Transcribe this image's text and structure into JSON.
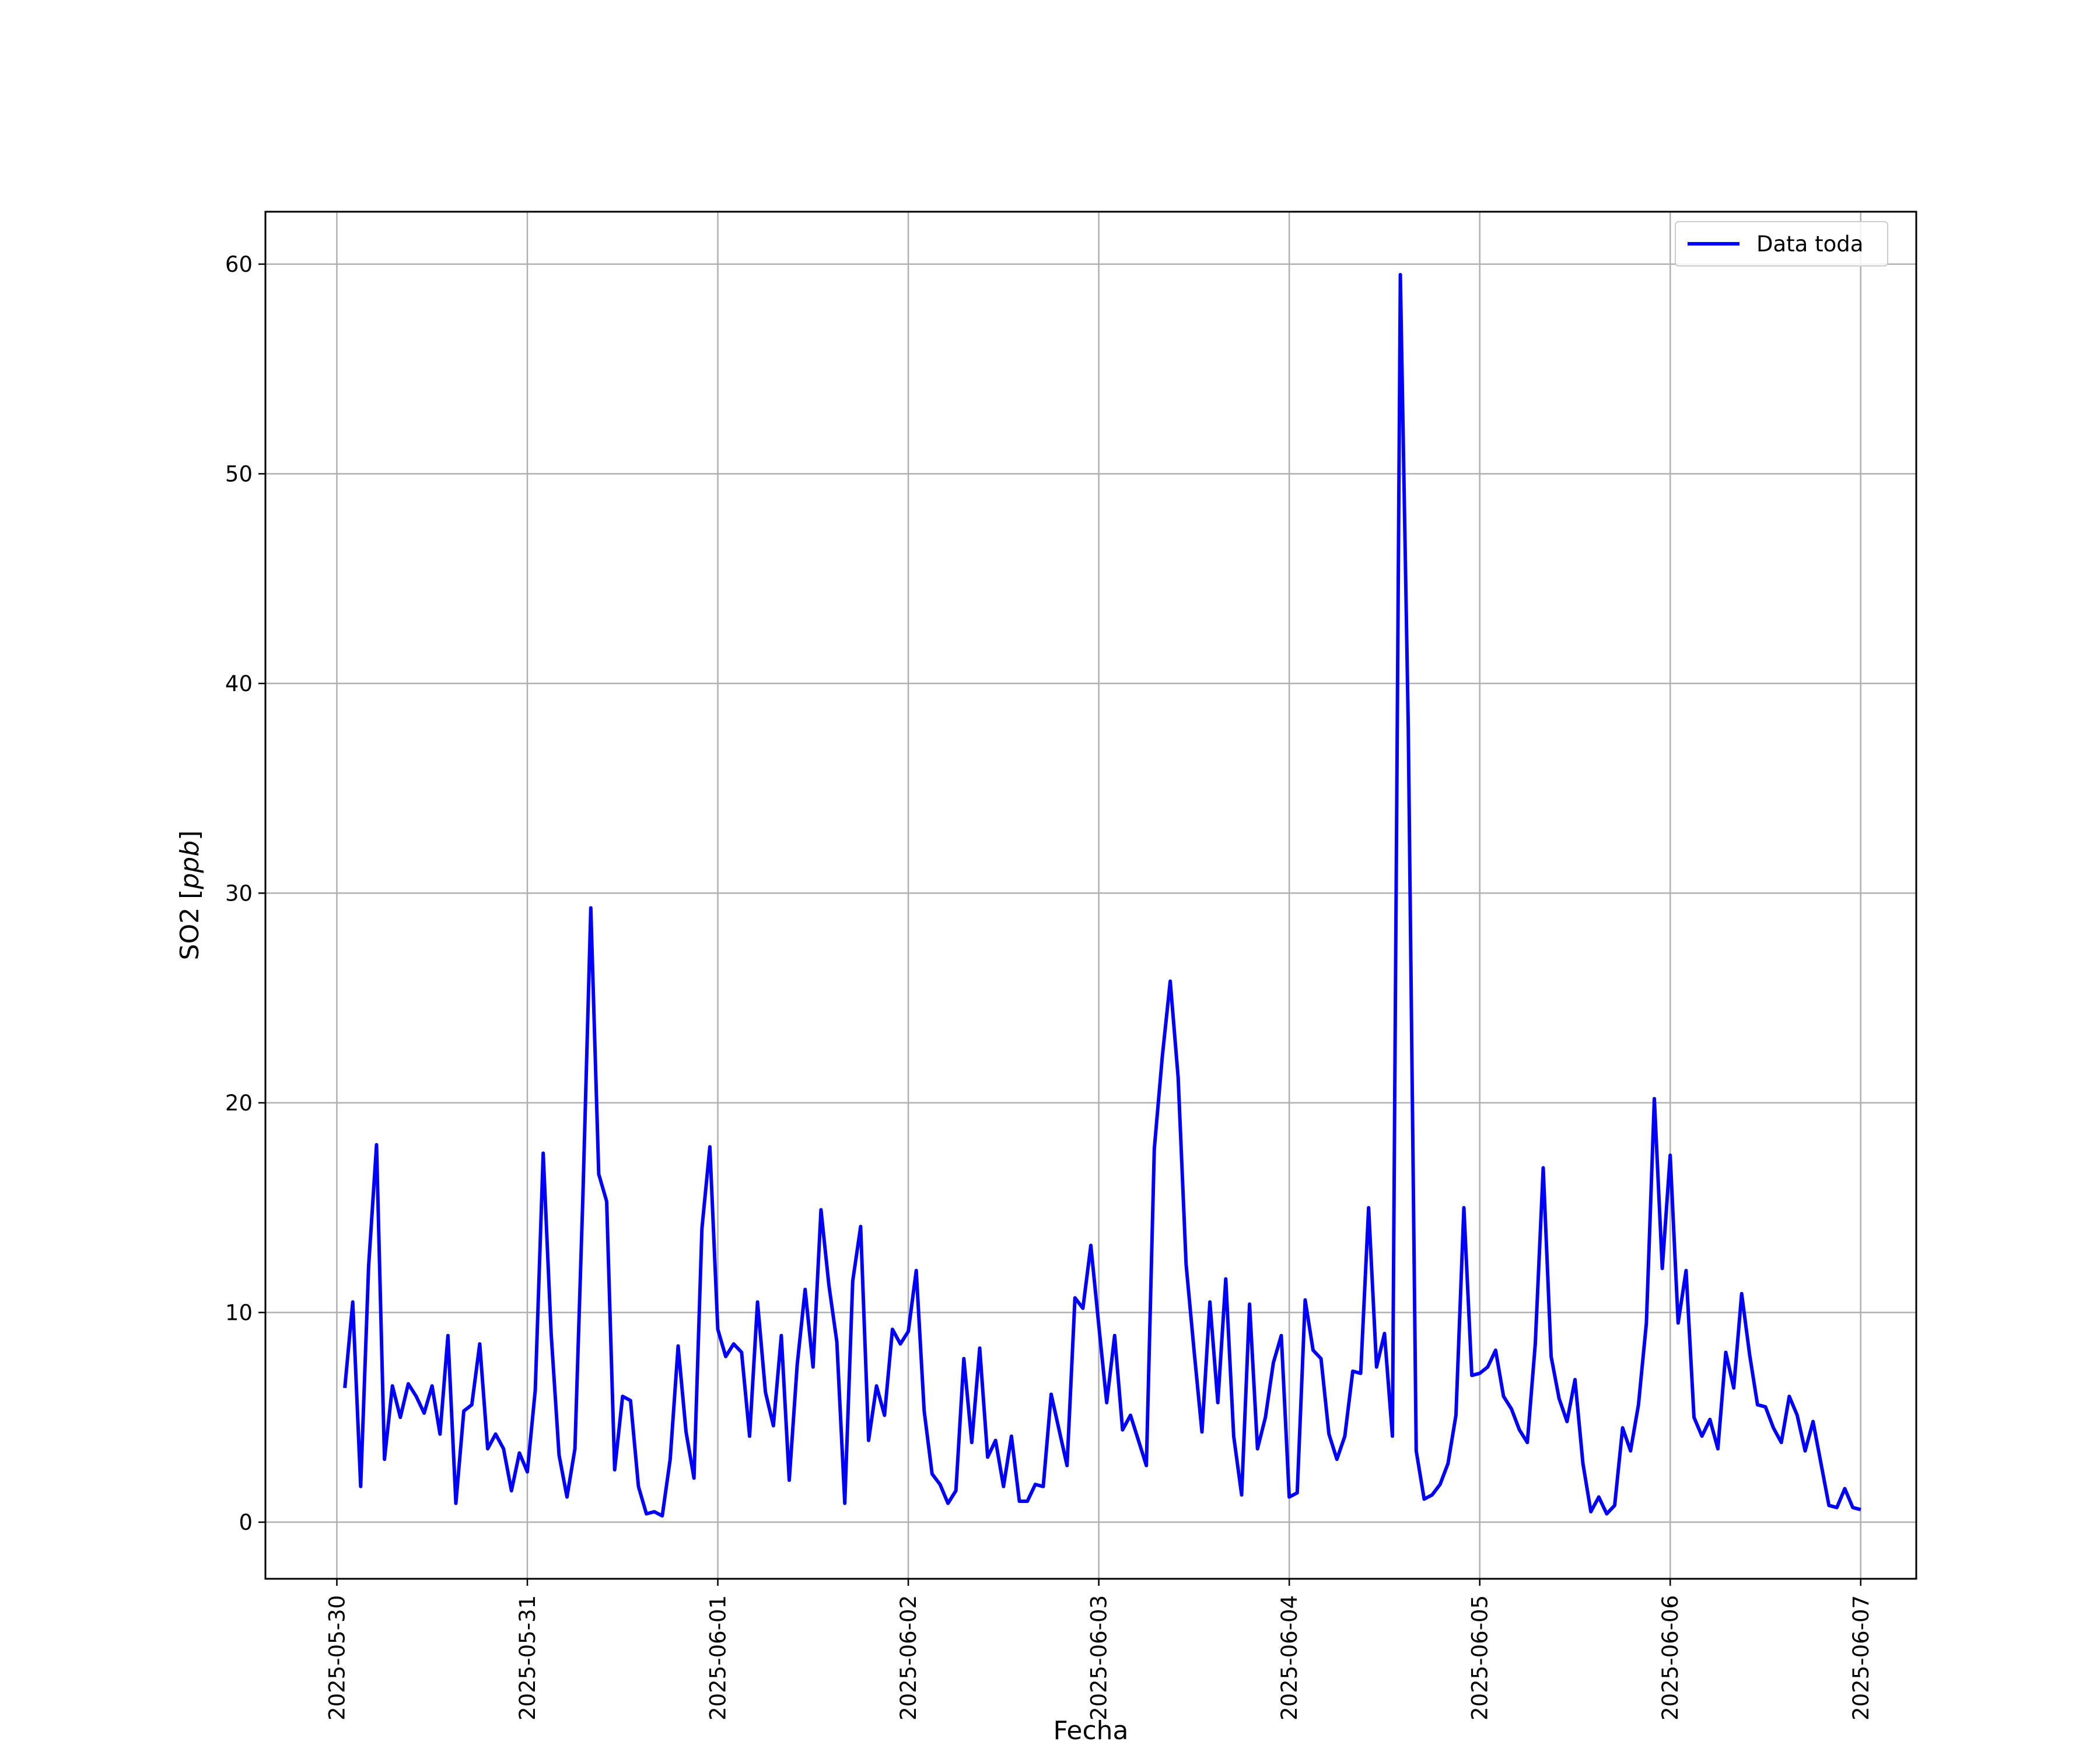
{
  "chart_data": {
    "type": "line",
    "title": "",
    "xlabel": "Fecha",
    "ylabel_text": "SO2 [",
    "ylabel_unit": "ppb",
    "ylabel_close": "]",
    "ylabel": "SO2 [ppb]",
    "x_axis_type": "time",
    "xlim": [
      "2025-05-29T15:00",
      "2025-06-07T07:00"
    ],
    "ylim": [
      -2.7,
      62.5
    ],
    "grid": true,
    "legend_position": "top-right",
    "xticks": [
      "2025-05-30",
      "2025-05-31",
      "2025-06-01",
      "2025-06-02",
      "2025-06-03",
      "2025-06-04",
      "2025-06-05",
      "2025-06-06",
      "2025-06-07"
    ],
    "yticks": [
      0,
      10,
      20,
      30,
      40,
      50,
      60
    ],
    "series": [
      {
        "name": "Data toda",
        "color": "#0000ff",
        "x": [
          "2025-05-30T01:00",
          "2025-05-30T02:00",
          "2025-05-30T03:00",
          "2025-05-30T04:00",
          "2025-05-30T05:00",
          "2025-05-30T06:00",
          "2025-05-30T07:00",
          "2025-05-30T08:00",
          "2025-05-30T09:00",
          "2025-05-30T10:00",
          "2025-05-30T11:00",
          "2025-05-30T12:00",
          "2025-05-30T13:00",
          "2025-05-30T14:00",
          "2025-05-30T15:00",
          "2025-05-30T16:00",
          "2025-05-30T17:00",
          "2025-05-30T18:00",
          "2025-05-30T19:00",
          "2025-05-30T20:00",
          "2025-05-30T21:00",
          "2025-05-30T22:00",
          "2025-05-30T23:00",
          "2025-05-31T00:00",
          "2025-05-31T01:00",
          "2025-05-31T02:00",
          "2025-05-31T03:00",
          "2025-05-31T04:00",
          "2025-05-31T05:00",
          "2025-05-31T06:00",
          "2025-05-31T07:00",
          "2025-05-31T08:00",
          "2025-05-31T09:00",
          "2025-05-31T10:00",
          "2025-05-31T11:00",
          "2025-05-31T12:00",
          "2025-05-31T13:00",
          "2025-05-31T14:00",
          "2025-05-31T15:00",
          "2025-05-31T16:00",
          "2025-05-31T17:00",
          "2025-05-31T18:00",
          "2025-05-31T19:00",
          "2025-05-31T20:00",
          "2025-05-31T21:00",
          "2025-05-31T22:00",
          "2025-05-31T23:00",
          "2025-06-01T00:00",
          "2025-06-01T01:00",
          "2025-06-01T02:00",
          "2025-06-01T03:00",
          "2025-06-01T04:00",
          "2025-06-01T05:00",
          "2025-06-01T06:00",
          "2025-06-01T07:00",
          "2025-06-01T08:00",
          "2025-06-01T09:00",
          "2025-06-01T10:00",
          "2025-06-01T11:00",
          "2025-06-01T12:00",
          "2025-06-01T13:00",
          "2025-06-01T14:00",
          "2025-06-01T15:00",
          "2025-06-01T16:00",
          "2025-06-01T17:00",
          "2025-06-01T18:00",
          "2025-06-01T19:00",
          "2025-06-01T20:00",
          "2025-06-01T21:00",
          "2025-06-01T22:00",
          "2025-06-01T23:00",
          "2025-06-02T00:00",
          "2025-06-02T01:00",
          "2025-06-02T02:00",
          "2025-06-02T03:00",
          "2025-06-02T04:00",
          "2025-06-02T05:00",
          "2025-06-02T06:00",
          "2025-06-02T07:00",
          "2025-06-02T08:00",
          "2025-06-02T09:00",
          "2025-06-02T10:00",
          "2025-06-02T11:00",
          "2025-06-02T12:00",
          "2025-06-02T13:00",
          "2025-06-02T14:00",
          "2025-06-02T15:00",
          "2025-06-02T16:00",
          "2025-06-02T17:00",
          "2025-06-02T18:00",
          "2025-06-02T19:00",
          "2025-06-02T20:00",
          "2025-06-02T21:00",
          "2025-06-02T22:00",
          "2025-06-02T23:00",
          "2025-06-03T00:00",
          "2025-06-03T01:00",
          "2025-06-03T02:00",
          "2025-06-03T03:00",
          "2025-06-03T04:00",
          "2025-06-03T05:00",
          "2025-06-03T06:00",
          "2025-06-03T07:00",
          "2025-06-03T08:00",
          "2025-06-03T09:00",
          "2025-06-03T10:00",
          "2025-06-03T11:00",
          "2025-06-03T12:00",
          "2025-06-03T13:00",
          "2025-06-03T14:00",
          "2025-06-03T15:00",
          "2025-06-03T16:00",
          "2025-06-03T17:00",
          "2025-06-03T18:00",
          "2025-06-03T19:00",
          "2025-06-03T20:00",
          "2025-06-03T21:00",
          "2025-06-03T22:00",
          "2025-06-03T23:00",
          "2025-06-04T00:00",
          "2025-06-04T01:00",
          "2025-06-04T02:00",
          "2025-06-04T03:00",
          "2025-06-04T04:00",
          "2025-06-04T05:00",
          "2025-06-04T06:00",
          "2025-06-04T07:00",
          "2025-06-04T08:00",
          "2025-06-04T09:00",
          "2025-06-04T10:00",
          "2025-06-04T11:00",
          "2025-06-04T12:00",
          "2025-06-04T13:00",
          "2025-06-04T14:00",
          "2025-06-04T15:00",
          "2025-06-04T16:00",
          "2025-06-04T17:00",
          "2025-06-04T18:00",
          "2025-06-04T19:00",
          "2025-06-04T20:00",
          "2025-06-04T21:00",
          "2025-06-04T22:00",
          "2025-06-04T23:00",
          "2025-06-05T00:00",
          "2025-06-05T01:00",
          "2025-06-05T02:00",
          "2025-06-05T03:00",
          "2025-06-05T04:00",
          "2025-06-05T05:00",
          "2025-06-05T06:00",
          "2025-06-05T07:00",
          "2025-06-05T08:00",
          "2025-06-05T09:00",
          "2025-06-05T10:00",
          "2025-06-05T11:00",
          "2025-06-05T12:00",
          "2025-06-05T13:00",
          "2025-06-05T14:00",
          "2025-06-05T15:00",
          "2025-06-05T16:00",
          "2025-06-05T17:00",
          "2025-06-05T18:00",
          "2025-06-05T19:00",
          "2025-06-05T20:00",
          "2025-06-05T21:00",
          "2025-06-05T22:00",
          "2025-06-05T23:00",
          "2025-06-06T00:00",
          "2025-06-06T01:00",
          "2025-06-06T02:00",
          "2025-06-06T03:00",
          "2025-06-06T04:00",
          "2025-06-06T05:00",
          "2025-06-06T06:00",
          "2025-06-06T07:00",
          "2025-06-06T08:00",
          "2025-06-06T09:00",
          "2025-06-06T10:00",
          "2025-06-06T11:00",
          "2025-06-06T12:00",
          "2025-06-06T13:00",
          "2025-06-06T14:00",
          "2025-06-06T15:00",
          "2025-06-06T16:00",
          "2025-06-06T17:00",
          "2025-06-06T18:00",
          "2025-06-06T19:00",
          "2025-06-06T20:00",
          "2025-06-06T21:00",
          "2025-06-06T22:00",
          "2025-06-06T23:00",
          "2025-06-07T00:00"
        ],
        "values": [
          6.4,
          10.5,
          1.7,
          12.2,
          18.0,
          3.0,
          6.5,
          5.0,
          6.6,
          6.0,
          5.2,
          6.5,
          4.2,
          8.9,
          0.9,
          5.3,
          5.6,
          8.5,
          3.5,
          4.2,
          3.5,
          1.5,
          3.3,
          2.4,
          6.3,
          17.6,
          9.0,
          3.2,
          1.2,
          3.5,
          15.5,
          29.3,
          16.6,
          15.3,
          2.5,
          6.0,
          5.8,
          1.7,
          0.4,
          0.5,
          0.3,
          3.0,
          8.4,
          4.3,
          2.1,
          14.0,
          17.9,
          9.2,
          7.9,
          8.5,
          8.1,
          4.1,
          10.5,
          6.2,
          4.6,
          8.9,
          2.0,
          7.5,
          11.1,
          7.4,
          14.9,
          11.3,
          8.6,
          0.9,
          11.5,
          14.1,
          3.9,
          6.5,
          5.1,
          9.2,
          8.5,
          9.1,
          12.0,
          5.3,
          2.3,
          1.8,
          0.9,
          1.5,
          7.8,
          3.8,
          8.3,
          3.1,
          3.9,
          1.7,
          4.1,
          1.0,
          1.0,
          1.8,
          1.7,
          6.1,
          4.4,
          2.7,
          10.7,
          10.2,
          13.2,
          9.4,
          5.7,
          8.9,
          4.4,
          5.1,
          3.9,
          2.7,
          17.8,
          22.2,
          25.8,
          21.2,
          12.3,
          8.2,
          4.3,
          10.5,
          5.7,
          11.6,
          4.1,
          1.3,
          10.4,
          3.5,
          5.0,
          7.6,
          8.9,
          1.2,
          1.4,
          10.6,
          8.2,
          7.8,
          4.2,
          3.0,
          4.1,
          7.2,
          7.1,
          15.0,
          7.4,
          9.0,
          4.1,
          59.5,
          37.9,
          3.4,
          1.1,
          1.3,
          1.8,
          2.8,
          5.1,
          15.0,
          7.0,
          7.1,
          7.4,
          8.2,
          6.0,
          5.4,
          4.4,
          3.8,
          8.5,
          16.9,
          7.9,
          5.9,
          4.8,
          6.8,
          2.8,
          0.5,
          1.2,
          0.4,
          0.8,
          4.5,
          3.4,
          5.6,
          9.5,
          20.2,
          12.1,
          17.5,
          9.5,
          12.0,
          5.0,
          4.1,
          4.9,
          3.5,
          8.1,
          6.4,
          10.9,
          8.0,
          5.6,
          5.5,
          4.5,
          3.8,
          6.0,
          5.1,
          3.4,
          4.8,
          2.8,
          0.8,
          0.7,
          1.6,
          0.7,
          0.6
        ]
      }
    ]
  }
}
